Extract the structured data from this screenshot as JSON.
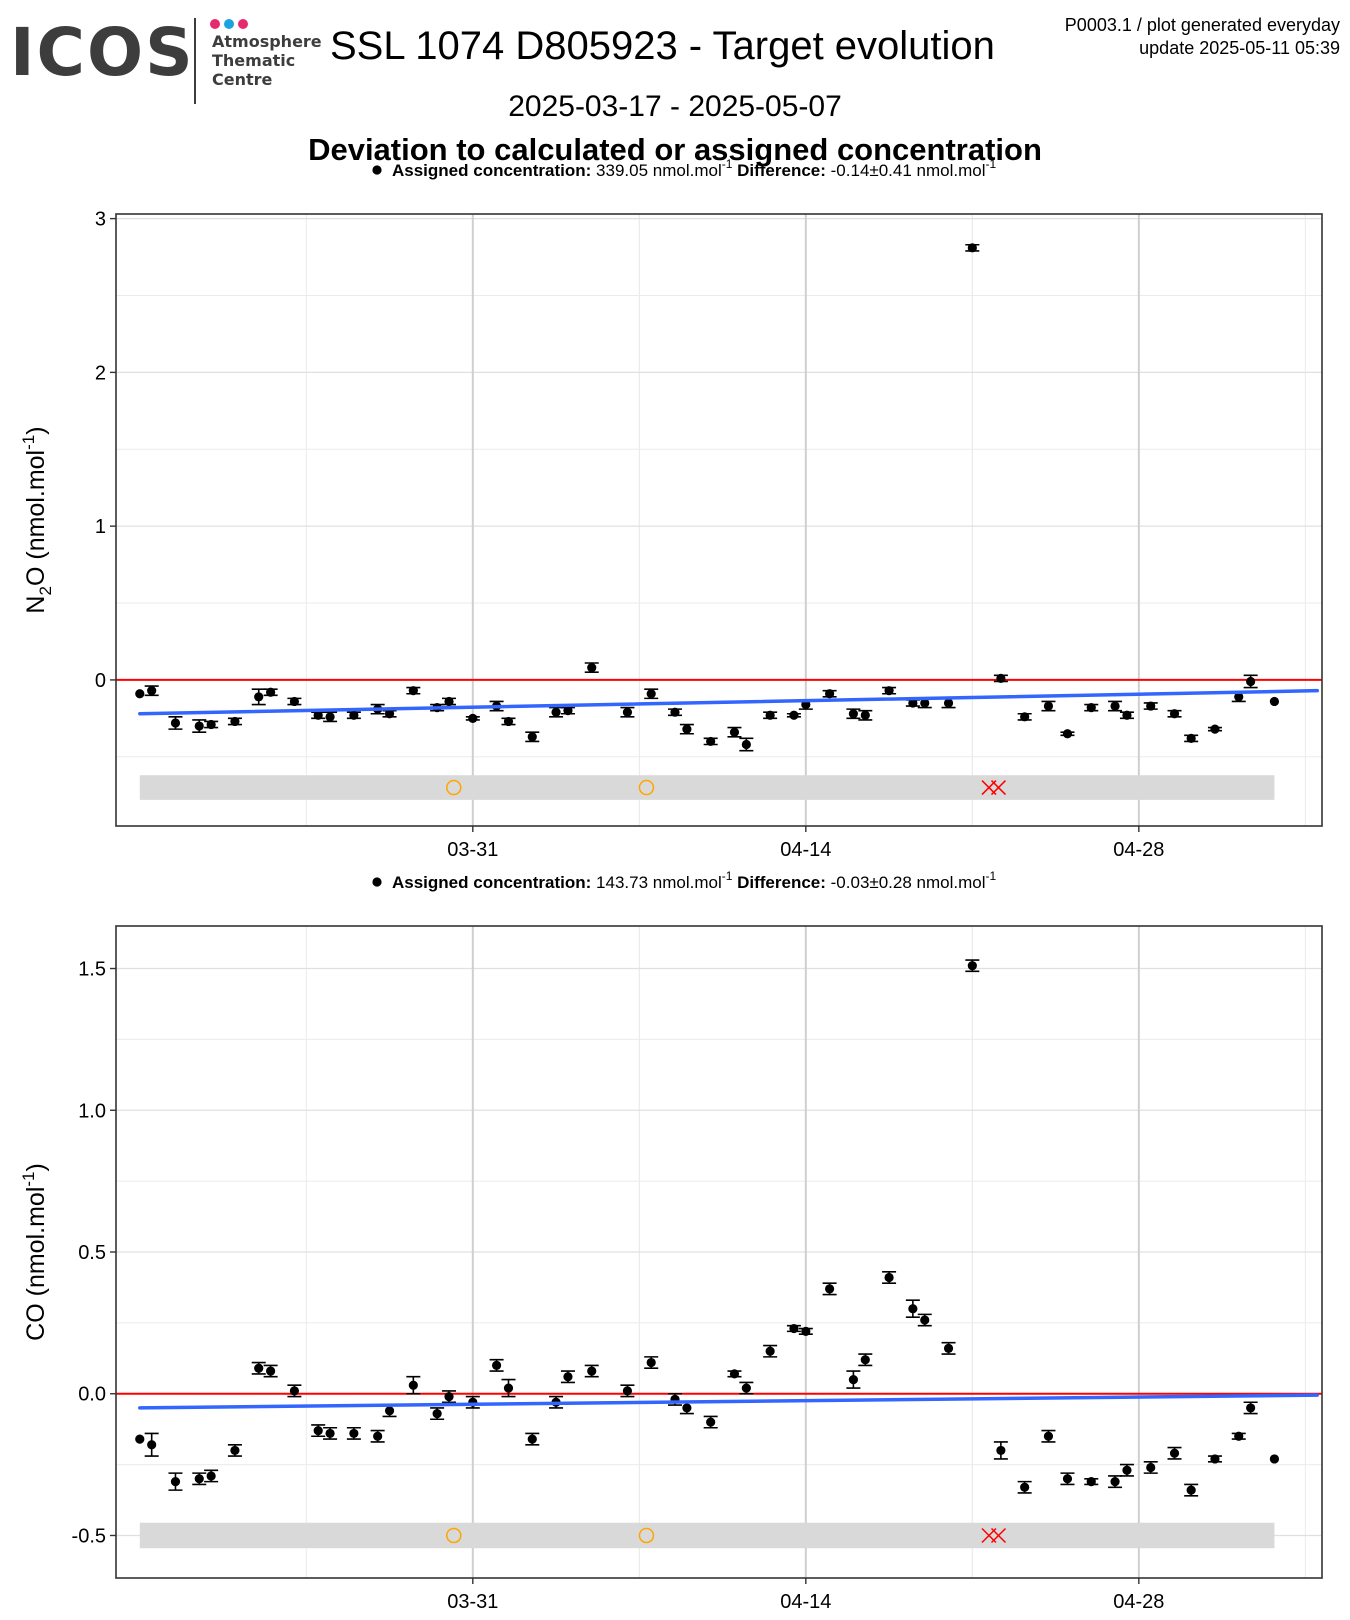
{
  "header": {
    "logo": {
      "word": "ICOS",
      "line1": "Atmosphere",
      "line2": "Thematic",
      "line3": "Centre",
      "dot_colors": [
        "#e52b6d",
        "#1ba3dd",
        "#e52b6d"
      ]
    },
    "title": "SSL 1074 D805923 - Target evolution",
    "meta_line1": "P0003.1 / plot generated everyday",
    "meta_line2": "update  2025-05-11 05:39",
    "date_range": "2025-03-17 - 2025-05-07",
    "section_title": "Deviation to calculated or assigned concentration"
  },
  "chart_data": [
    {
      "type": "scatter",
      "info": {
        "assigned_label": "Assigned concentration:",
        "assigned_value": "339.05 nmol.mol",
        "assigned_exp": "-1",
        "difference_label": "Difference:",
        "difference_value": "-0.14±0.41 nmol.mol",
        "difference_exp": "-1"
      },
      "ylabel": {
        "species": "N",
        "species_sub": "2",
        "species_rest": "O",
        "unit": " (nmol.mol",
        "unit_exp": "-1",
        "unit_close": ")"
      },
      "ylim": [
        -0.95,
        3.03
      ],
      "yticks": [
        0,
        1,
        2,
        3
      ],
      "ytick_labels": [
        "0",
        "1",
        "2",
        "3"
      ],
      "x_dates": [
        "03-31",
        "04-14",
        "04-28"
      ],
      "x_tick_labels": [
        "03-31",
        "04-14",
        "04-28"
      ],
      "x_day_range": [
        -1.0,
        49.7
      ],
      "zero_line_color": "#ff0000",
      "trend": {
        "color": "#3366ff",
        "start": [
          0,
          -0.22
        ],
        "end": [
          49.5,
          -0.07
        ]
      },
      "points": [
        [
          0.0,
          -0.09,
          0
        ],
        [
          0.5,
          -0.07,
          0.03
        ],
        [
          1.5,
          -0.28,
          0.04
        ],
        [
          2.5,
          -0.3,
          0.04
        ],
        [
          3.0,
          -0.29,
          0.02
        ],
        [
          4.0,
          -0.27,
          0.02
        ],
        [
          5.0,
          -0.11,
          0.05
        ],
        [
          5.5,
          -0.08,
          0.02
        ],
        [
          6.5,
          -0.14,
          0.02
        ],
        [
          7.5,
          -0.23,
          0.02
        ],
        [
          8.0,
          -0.24,
          0.03
        ],
        [
          9.0,
          -0.23,
          0.02
        ],
        [
          10.0,
          -0.19,
          0.03
        ],
        [
          10.5,
          -0.22,
          0.02
        ],
        [
          11.5,
          -0.07,
          0.02
        ],
        [
          12.5,
          -0.18,
          0.02
        ],
        [
          13.0,
          -0.14,
          0.02
        ],
        [
          14.0,
          -0.25,
          0.01
        ],
        [
          15.0,
          -0.17,
          0.03
        ],
        [
          15.5,
          -0.27,
          0.02
        ],
        [
          16.5,
          -0.37,
          0.03
        ],
        [
          17.5,
          -0.21,
          0.03
        ],
        [
          18.0,
          -0.2,
          0.02
        ],
        [
          19.0,
          0.08,
          0.03
        ],
        [
          20.5,
          -0.21,
          0.03
        ],
        [
          21.5,
          -0.09,
          0.03
        ],
        [
          22.5,
          -0.21,
          0.02
        ],
        [
          23.0,
          -0.32,
          0.03
        ],
        [
          24.0,
          -0.4,
          0.02
        ],
        [
          25.0,
          -0.34,
          0.03
        ],
        [
          25.5,
          -0.42,
          0.04
        ],
        [
          26.5,
          -0.23,
          0.02
        ],
        [
          27.5,
          -0.23,
          0.01
        ],
        [
          28.0,
          -0.16,
          0.03
        ],
        [
          29.0,
          -0.09,
          0.02
        ],
        [
          30.0,
          -0.22,
          0.03
        ],
        [
          30.5,
          -0.23,
          0.03
        ],
        [
          31.5,
          -0.07,
          0.02
        ],
        [
          32.5,
          -0.15,
          0.02
        ],
        [
          33.0,
          -0.15,
          0.03
        ],
        [
          34.0,
          -0.15,
          0.03
        ],
        [
          35.0,
          2.81,
          0.02
        ],
        [
          36.2,
          0.01,
          0.02
        ],
        [
          37.2,
          -0.24,
          0.02
        ],
        [
          38.2,
          -0.17,
          0.03
        ],
        [
          39.0,
          -0.35,
          0.01
        ],
        [
          40.0,
          -0.18,
          0.02
        ],
        [
          41.0,
          -0.17,
          0.03
        ],
        [
          41.5,
          -0.23,
          0.02
        ],
        [
          42.5,
          -0.17,
          0.02
        ],
        [
          43.5,
          -0.22,
          0.02
        ],
        [
          44.2,
          -0.38,
          0.02
        ],
        [
          45.2,
          -0.32,
          0.01
        ],
        [
          46.2,
          -0.11,
          0.03
        ],
        [
          46.7,
          -0.01,
          0.04
        ],
        [
          47.7,
          -0.14,
          0
        ]
      ],
      "flag_band": {
        "center": -0.7,
        "half_height": 0.08,
        "color": "#d9d9d9"
      },
      "flags_circle": [
        13.2,
        21.3
      ],
      "flags_cross": [
        35.7,
        36.1
      ],
      "circle_color": "#ffa500",
      "cross_color": "#ff0000"
    },
    {
      "type": "scatter",
      "info": {
        "assigned_label": "Assigned concentration:",
        "assigned_value": "143.73 nmol.mol",
        "assigned_exp": "-1",
        "difference_label": "Difference:",
        "difference_value": "-0.03±0.28 nmol.mol",
        "difference_exp": "-1"
      },
      "ylabel": {
        "species": "CO",
        "species_sub": "",
        "species_rest": "",
        "unit": " (nmol.mol",
        "unit_exp": "-1",
        "unit_close": ")"
      },
      "ylim": [
        -0.65,
        1.65
      ],
      "yticks": [
        -0.5,
        0.0,
        0.5,
        1.0,
        1.5
      ],
      "ytick_labels": [
        "-0.5",
        "0.0",
        "0.5",
        "1.0",
        "1.5"
      ],
      "x_dates": [
        "03-31",
        "04-14",
        "04-28"
      ],
      "x_tick_labels": [
        "03-31",
        "04-14",
        "04-28"
      ],
      "x_day_range": [
        -1.0,
        49.7
      ],
      "zero_line_color": "#ff0000",
      "trend": {
        "color": "#3366ff",
        "start": [
          0,
          -0.05
        ],
        "end": [
          49.5,
          -0.005
        ]
      },
      "points": [
        [
          0.0,
          -0.16,
          0
        ],
        [
          0.5,
          -0.18,
          0.04
        ],
        [
          1.5,
          -0.31,
          0.03
        ],
        [
          2.5,
          -0.3,
          0.02
        ],
        [
          3.0,
          -0.29,
          0.02
        ],
        [
          4.0,
          -0.2,
          0.02
        ],
        [
          5.0,
          0.09,
          0.02
        ],
        [
          5.5,
          0.08,
          0.02
        ],
        [
          6.5,
          0.01,
          0.02
        ],
        [
          7.5,
          -0.13,
          0.02
        ],
        [
          8.0,
          -0.14,
          0.02
        ],
        [
          9.0,
          -0.14,
          0.02
        ],
        [
          10.0,
          -0.15,
          0.02
        ],
        [
          10.5,
          -0.06,
          0.02
        ],
        [
          11.5,
          0.03,
          0.03
        ],
        [
          12.5,
          -0.07,
          0.02
        ],
        [
          13.0,
          -0.01,
          0.02
        ],
        [
          14.0,
          -0.03,
          0.02
        ],
        [
          15.0,
          0.1,
          0.02
        ],
        [
          15.5,
          0.02,
          0.03
        ],
        [
          16.5,
          -0.16,
          0.02
        ],
        [
          17.5,
          -0.03,
          0.02
        ],
        [
          18.0,
          0.06,
          0.02
        ],
        [
          19.0,
          0.08,
          0.02
        ],
        [
          20.5,
          0.01,
          0.02
        ],
        [
          21.5,
          0.11,
          0.02
        ],
        [
          22.5,
          -0.02,
          0.02
        ],
        [
          23.0,
          -0.05,
          0.02
        ],
        [
          24.0,
          -0.1,
          0.02
        ],
        [
          25.0,
          0.07,
          0.01
        ],
        [
          25.5,
          0.02,
          0.02
        ],
        [
          26.5,
          0.15,
          0.02
        ],
        [
          27.5,
          0.23,
          0.01
        ],
        [
          28.0,
          0.22,
          0.01
        ],
        [
          29.0,
          0.37,
          0.02
        ],
        [
          30.0,
          0.05,
          0.03
        ],
        [
          30.5,
          0.12,
          0.02
        ],
        [
          31.5,
          0.41,
          0.02
        ],
        [
          32.5,
          0.3,
          0.03
        ],
        [
          33.0,
          0.26,
          0.02
        ],
        [
          34.0,
          0.16,
          0.02
        ],
        [
          35.0,
          1.51,
          0.02
        ],
        [
          36.2,
          -0.2,
          0.03
        ],
        [
          37.2,
          -0.33,
          0.02
        ],
        [
          38.2,
          -0.15,
          0.02
        ],
        [
          39.0,
          -0.3,
          0.02
        ],
        [
          40.0,
          -0.31,
          0.01
        ],
        [
          41.0,
          -0.31,
          0.02
        ],
        [
          41.5,
          -0.27,
          0.02
        ],
        [
          42.5,
          -0.26,
          0.02
        ],
        [
          43.5,
          -0.21,
          0.02
        ],
        [
          44.2,
          -0.34,
          0.02
        ],
        [
          45.2,
          -0.23,
          0.01
        ],
        [
          46.2,
          -0.15,
          0.01
        ],
        [
          46.7,
          -0.05,
          0.02
        ],
        [
          47.7,
          -0.23,
          0
        ]
      ],
      "flag_band": {
        "center": -0.5,
        "half_height": 0.045,
        "color": "#d9d9d9"
      },
      "flags_circle": [
        13.2,
        21.3
      ],
      "flags_cross": [
        35.7,
        36.1
      ],
      "circle_color": "#ffa500",
      "cross_color": "#ff0000"
    }
  ]
}
